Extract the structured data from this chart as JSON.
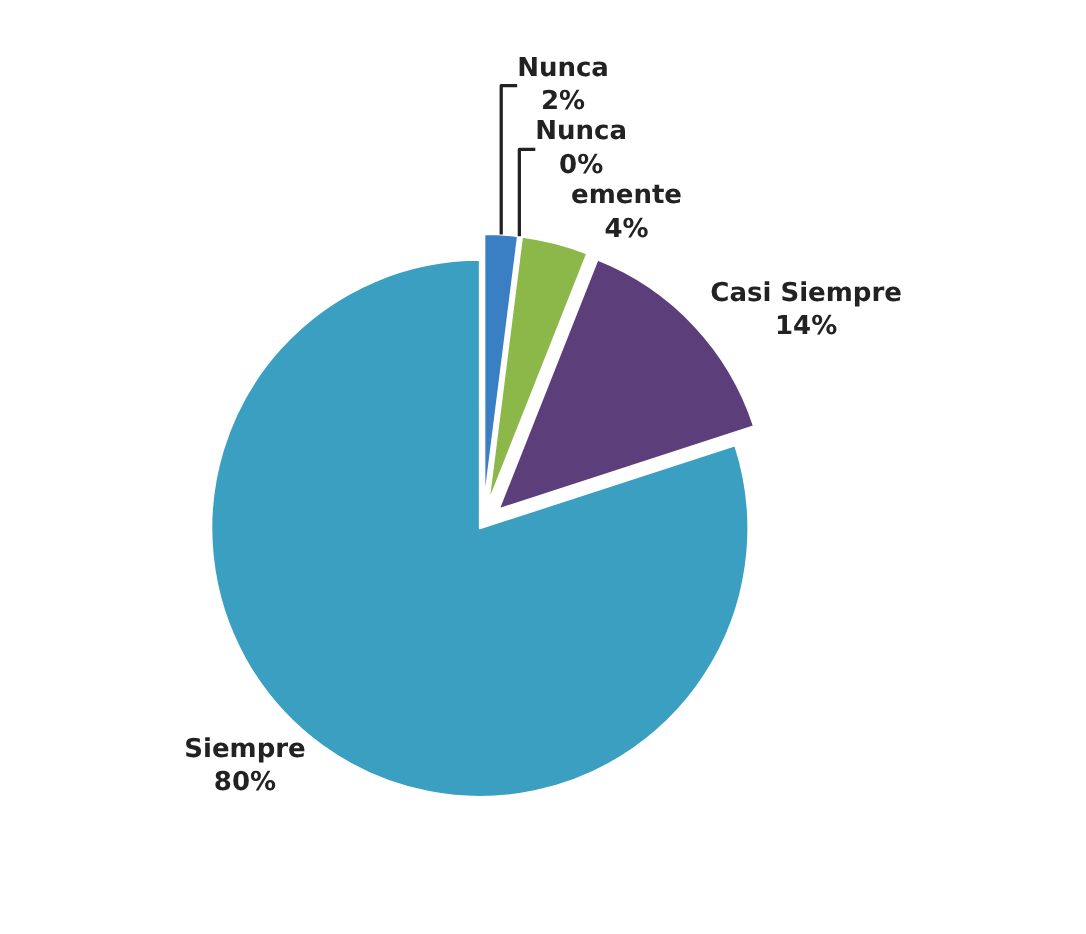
{
  "chart_data": {
    "type": "pie",
    "categories": [
      "Nunca",
      "Nunca",
      "emente",
      "Casi Siempre",
      "Siempre"
    ],
    "values": [
      2,
      0,
      4,
      14,
      80
    ],
    "value_labels": [
      "2%",
      "0%",
      "4%",
      "14%",
      "80%"
    ],
    "colors": [
      "#3a7fc4",
      "#c0504d",
      "#8cb84a",
      "#5c3f7a",
      "#3a9fc0"
    ],
    "legend": false
  }
}
